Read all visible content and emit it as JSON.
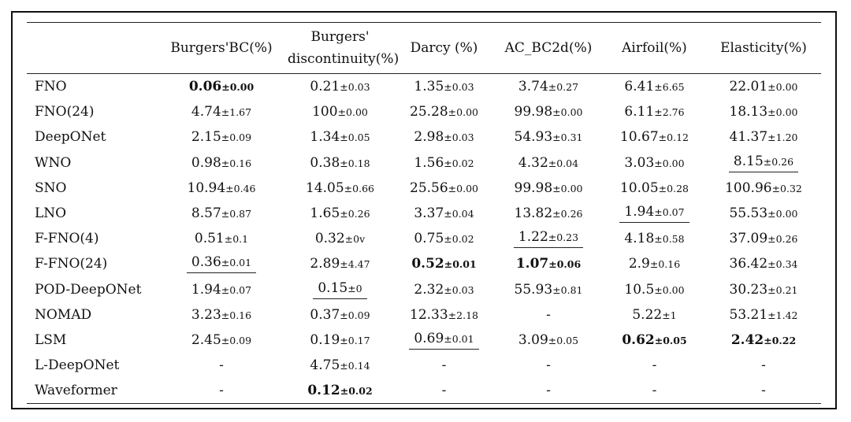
{
  "table": {
    "headers": {
      "model": "",
      "burgers_bc": "Burgers'BC(%)",
      "burgers_disc_line1": "Burgers'",
      "burgers_disc_line2": "discontinuity(%)",
      "darcy": "Darcy (%)",
      "ac_bc2d": "AC_BC2d(%)",
      "airfoil": "Airfoil(%)",
      "elasticity": "Elasticity(%)"
    },
    "rows": [
      {
        "name": "FNO",
        "cells": [
          {
            "v": "0.06",
            "sd": "±0.00",
            "bold": true
          },
          {
            "v": "0.21",
            "sd": "±0.03"
          },
          {
            "v": "1.35",
            "sd": "±0.03"
          },
          {
            "v": "3.74",
            "sd": "±0.27"
          },
          {
            "v": "6.41",
            "sd": "±6.65"
          },
          {
            "v": "22.01",
            "sd": "±0.00"
          }
        ]
      },
      {
        "name": "FNO(24)",
        "cells": [
          {
            "v": "4.74",
            "sd": "±1.67"
          },
          {
            "v": "100",
            "sd": "±0.00"
          },
          {
            "v": "25.28",
            "sd": "±0.00"
          },
          {
            "v": "99.98",
            "sd": "±0.00"
          },
          {
            "v": "6.11",
            "sd": "±2.76"
          },
          {
            "v": "18.13",
            "sd": "±0.00"
          }
        ]
      },
      {
        "name": "DeepONet",
        "cells": [
          {
            "v": "2.15",
            "sd": "±0.09"
          },
          {
            "v": "1.34",
            "sd": "±0.05"
          },
          {
            "v": "2.98",
            "sd": "±0.03"
          },
          {
            "v": "54.93",
            "sd": "±0.31"
          },
          {
            "v": "10.67",
            "sd": "±0.12"
          },
          {
            "v": "41.37",
            "sd": "±1.20"
          }
        ]
      },
      {
        "name": "WNO",
        "cells": [
          {
            "v": "0.98",
            "sd": "±0.16"
          },
          {
            "v": "0.38",
            "sd": "±0.18"
          },
          {
            "v": "1.56",
            "sd": "±0.02"
          },
          {
            "v": "4.32",
            "sd": "±0.04"
          },
          {
            "v": "3.03",
            "sd": "±0.00"
          },
          {
            "v": "8.15",
            "sd": "±0.26",
            "underline": true
          }
        ]
      },
      {
        "name": "SNO",
        "cells": [
          {
            "v": "10.94",
            "sd": "±0.46"
          },
          {
            "v": "14.05",
            "sd": "±0.66"
          },
          {
            "v": "25.56",
            "sd": "±0.00"
          },
          {
            "v": "99.98",
            "sd": "±0.00"
          },
          {
            "v": "10.05",
            "sd": "±0.28"
          },
          {
            "v": "100.96",
            "sd": "±0.32"
          }
        ]
      },
      {
        "name": "LNO",
        "cells": [
          {
            "v": "8.57",
            "sd": "±0.87"
          },
          {
            "v": "1.65",
            "sd": "±0.26"
          },
          {
            "v": "3.37",
            "sd": "±0.04"
          },
          {
            "v": "13.82",
            "sd": "±0.26"
          },
          {
            "v": "1.94",
            "sd": "±0.07",
            "underline": true
          },
          {
            "v": "55.53",
            "sd": "±0.00"
          }
        ]
      },
      {
        "name": "F-FNO(4)",
        "cells": [
          {
            "v": "0.51",
            "sd": "±0.1"
          },
          {
            "v": "0.32",
            "sd": "±0v"
          },
          {
            "v": "0.75",
            "sd": "±0.02"
          },
          {
            "v": "1.22",
            "sd": "±0.23",
            "underline": true
          },
          {
            "v": "4.18",
            "sd": "±0.58"
          },
          {
            "v": "37.09",
            "sd": "±0.26"
          }
        ]
      },
      {
        "name": "F-FNO(24)",
        "cells": [
          {
            "v": "0.36",
            "sd": "±0.01",
            "underline": true
          },
          {
            "v": "2.89",
            "sd": "±4.47"
          },
          {
            "v": "0.52",
            "sd": "±0.01",
            "bold": true
          },
          {
            "v": "1.07",
            "sd": "±0.06",
            "bold": true
          },
          {
            "v": "2.9",
            "sd": "±0.16"
          },
          {
            "v": "36.42",
            "sd": "±0.34"
          }
        ]
      },
      {
        "name": "POD-DeepONet",
        "cells": [
          {
            "v": "1.94",
            "sd": "±0.07"
          },
          {
            "v": "0.15",
            "sd": "±0",
            "underline": true
          },
          {
            "v": "2.32",
            "sd": "±0.03"
          },
          {
            "v": "55.93",
            "sd": "±0.81"
          },
          {
            "v": "10.5",
            "sd": "±0.00"
          },
          {
            "v": "30.23",
            "sd": "±0.21"
          }
        ]
      },
      {
        "name": "NOMAD",
        "cells": [
          {
            "v": "3.23",
            "sd": "±0.16"
          },
          {
            "v": "0.37",
            "sd": "±0.09"
          },
          {
            "v": "12.33",
            "sd": "±2.18"
          },
          {
            "v": "-",
            "sd": ""
          },
          {
            "v": "5.22",
            "sd": "±1"
          },
          {
            "v": "53.21",
            "sd": "±1.42"
          }
        ]
      },
      {
        "name": "LSM",
        "cells": [
          {
            "v": "2.45",
            "sd": "±0.09"
          },
          {
            "v": "0.19",
            "sd": "±0.17"
          },
          {
            "v": "0.69",
            "sd": "±0.01",
            "underline": true
          },
          {
            "v": "3.09",
            "sd": "±0.05"
          },
          {
            "v": "0.62",
            "sd": "±0.05",
            "bold": true
          },
          {
            "v": "2.42",
            "sd": "±0.22",
            "bold": true
          }
        ]
      },
      {
        "name": "L-DeepONet",
        "cells": [
          {
            "v": "-",
            "sd": ""
          },
          {
            "v": "4.75",
            "sd": "±0.14"
          },
          {
            "v": "-",
            "sd": ""
          },
          {
            "v": "-",
            "sd": ""
          },
          {
            "v": "-",
            "sd": ""
          },
          {
            "v": "-",
            "sd": ""
          }
        ]
      },
      {
        "name": "Waveformer",
        "cells": [
          {
            "v": "-",
            "sd": ""
          },
          {
            "v": "0.12",
            "sd": "±0.02",
            "bold": true
          },
          {
            "v": "-",
            "sd": ""
          },
          {
            "v": "-",
            "sd": ""
          },
          {
            "v": "-",
            "sd": ""
          },
          {
            "v": "-",
            "sd": ""
          }
        ]
      }
    ]
  }
}
